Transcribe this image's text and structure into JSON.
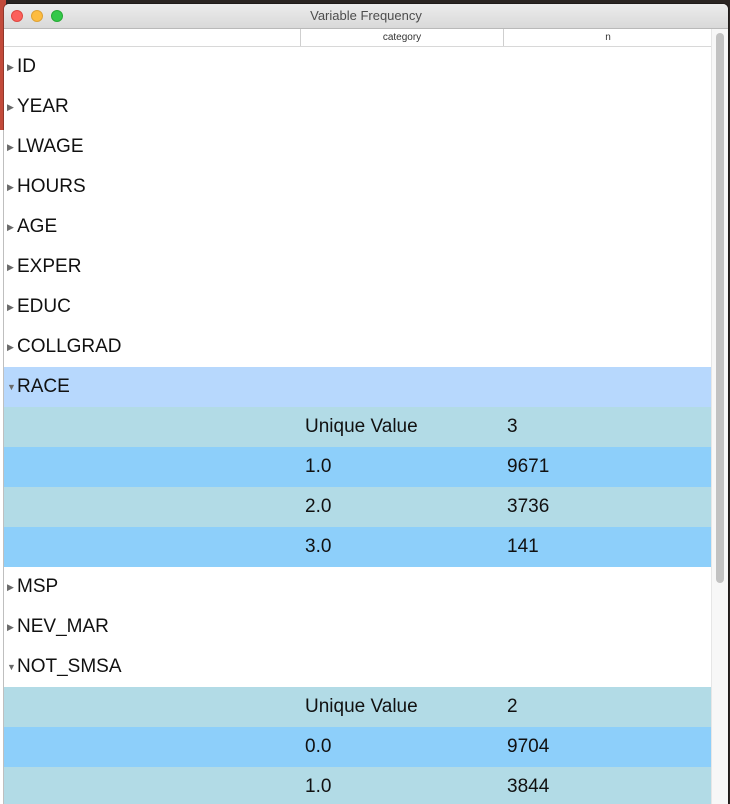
{
  "window": {
    "title": "Variable Frequency"
  },
  "header": {
    "col_category": "category",
    "col_n": "n"
  },
  "rows": [
    {
      "name": "ID",
      "expanded": false
    },
    {
      "name": "YEAR",
      "expanded": false
    },
    {
      "name": "LWAGE",
      "expanded": false
    },
    {
      "name": "HOURS",
      "expanded": false
    },
    {
      "name": "AGE",
      "expanded": false
    },
    {
      "name": "EXPER",
      "expanded": false
    },
    {
      "name": "EDUC",
      "expanded": false
    },
    {
      "name": "COLLGRAD",
      "expanded": false
    },
    {
      "name": "RACE",
      "expanded": true,
      "selected": true,
      "children": [
        {
          "category": "Unique Value",
          "n": "3"
        },
        {
          "category": "1.0",
          "n": "9671"
        },
        {
          "category": "2.0",
          "n": "3736"
        },
        {
          "category": "3.0",
          "n": "141"
        }
      ]
    },
    {
      "name": "MSP",
      "expanded": false
    },
    {
      "name": "NEV_MAR",
      "expanded": false
    },
    {
      "name": "NOT_SMSA",
      "expanded": true,
      "children": [
        {
          "category": "Unique Value",
          "n": "2"
        },
        {
          "category": "0.0",
          "n": "9704"
        },
        {
          "category": "1.0",
          "n": "3844"
        }
      ]
    }
  ],
  "icons": {
    "collapsed": "▶",
    "expanded": "▼"
  },
  "colors": {
    "selected_row": "#b7d8fd",
    "child_row_light": "#b2dbe6",
    "child_row_dark": "#8dcffa"
  }
}
